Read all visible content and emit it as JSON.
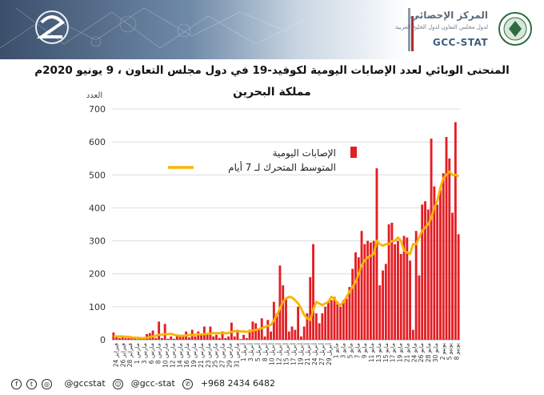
{
  "header": {
    "logo_ar": "المركز الإحصائي",
    "logo_sub": "لدول مجلس التعاون لدول الخليج العربية",
    "logo_en": "GCC-STAT"
  },
  "title": "المنحنى الوبائي لعدد الإصابات اليومية لكوفيد-19  في  دول مجلس التعاون ، 9 يونيو 2020م",
  "footer": {
    "handles": "@gccstat",
    "handle2": "@gcc-stat",
    "phone": "+968 2434 6482"
  },
  "colors": {
    "bar": "#e31e24",
    "line": "#f7b500",
    "banner": "#3b4f6b"
  },
  "chart_data": {
    "type": "bar",
    "title": "مملكة البحرين",
    "ylabel": "العدد",
    "ylim": [
      0,
      700
    ],
    "yticks": [
      0,
      100,
      200,
      300,
      400,
      500,
      600,
      700
    ],
    "legend": [
      {
        "name": "الإصابات اليومية",
        "kind": "bar"
      },
      {
        "name": "المتوسط المتحرك لـ  7 أيام",
        "kind": "line"
      }
    ],
    "legend_placement": "top-right",
    "x_tick_labels": [
      "24 فبراير",
      "26 فبراير",
      "28 فبراير",
      "1 مارس",
      "3 مارس",
      "6 مارس",
      "8 مارس",
      "10 مارس",
      "12 مارس",
      "14 مارس",
      "16 مارس",
      "19 مارس",
      "21 مارس",
      "23 مارس",
      "25 مارس",
      "27 مارس",
      "29 مارس",
      "31 مارس",
      "1 أبريل",
      "3 أبريل",
      "5 أبريل",
      "8 أبريل",
      "10 أبريل",
      "12 أبريل",
      "15 أبريل",
      "17 أبريل",
      "19 أبريل",
      "21 أبريل",
      "24 أبريل",
      "27 أبريل",
      "29 أبريل",
      "1 مايو",
      "3 مايو",
      "5 مايو",
      "7 مايو",
      "9 مايو",
      "11 مايو",
      "13 مايو",
      "15 مايو",
      "17 مايو",
      "19 مايو",
      "21 مايو",
      "24 مايو",
      "26 مايو",
      "28 مايو",
      "30 مايو",
      "2 يونيو",
      "5 يونيو",
      "8 يونيو"
    ],
    "series": [
      {
        "name": "الإصابات اليومية",
        "values": [
          22,
          13,
          5,
          7,
          5,
          5,
          5,
          9,
          2,
          3,
          6,
          17,
          20,
          28,
          5,
          55,
          5,
          48,
          3,
          10,
          3,
          13,
          13,
          15,
          25,
          7,
          30,
          10,
          25,
          15,
          40,
          18,
          40,
          10,
          15,
          5,
          25,
          5,
          10,
          52,
          10,
          30,
          2,
          15,
          5,
          30,
          55,
          50,
          35,
          65,
          10,
          60,
          25,
          115,
          80,
          225,
          165,
          125,
          25,
          40,
          30,
          100,
          10,
          40,
          80,
          190,
          290,
          80,
          50,
          80,
          100,
          115,
          120,
          130,
          115,
          100,
          120,
          125,
          160,
          215,
          265,
          250,
          330,
          290,
          300,
          295,
          300,
          520,
          165,
          210,
          230,
          350,
          355,
          290,
          300,
          260,
          315,
          310,
          240,
          30,
          330,
          195,
          410,
          420,
          395,
          610,
          465,
          410,
          455,
          505,
          615,
          550,
          385,
          660,
          320
        ]
      },
      {
        "name": "المتوسط المتحرك لـ  7 أيام",
        "values": [
          10,
          10,
          10,
          10,
          9,
          9,
          7,
          6,
          6,
          5,
          5,
          6,
          8,
          10,
          12,
          15,
          15,
          17,
          17,
          18,
          15,
          13,
          12,
          12,
          13,
          14,
          14,
          15,
          16,
          16,
          17,
          18,
          18,
          20,
          20,
          20,
          20,
          20,
          20,
          24,
          26,
          25,
          25,
          25,
          24,
          25,
          28,
          30,
          32,
          35,
          38,
          42,
          45,
          58,
          75,
          95,
          115,
          125,
          130,
          128,
          120,
          110,
          95,
          75,
          65,
          60,
          90,
          115,
          110,
          105,
          110,
          115,
          130,
          125,
          110,
          105,
          115,
          130,
          145,
          160,
          175,
          200,
          225,
          240,
          250,
          255,
          260,
          300,
          290,
          285,
          290,
          290,
          300,
          300,
          310,
          300,
          270,
          265,
          260,
          290,
          290,
          310,
          330,
          340,
          350,
          370,
          400,
          420,
          460,
          490,
          500,
          510,
          500,
          500,
          495
        ]
      }
    ]
  }
}
